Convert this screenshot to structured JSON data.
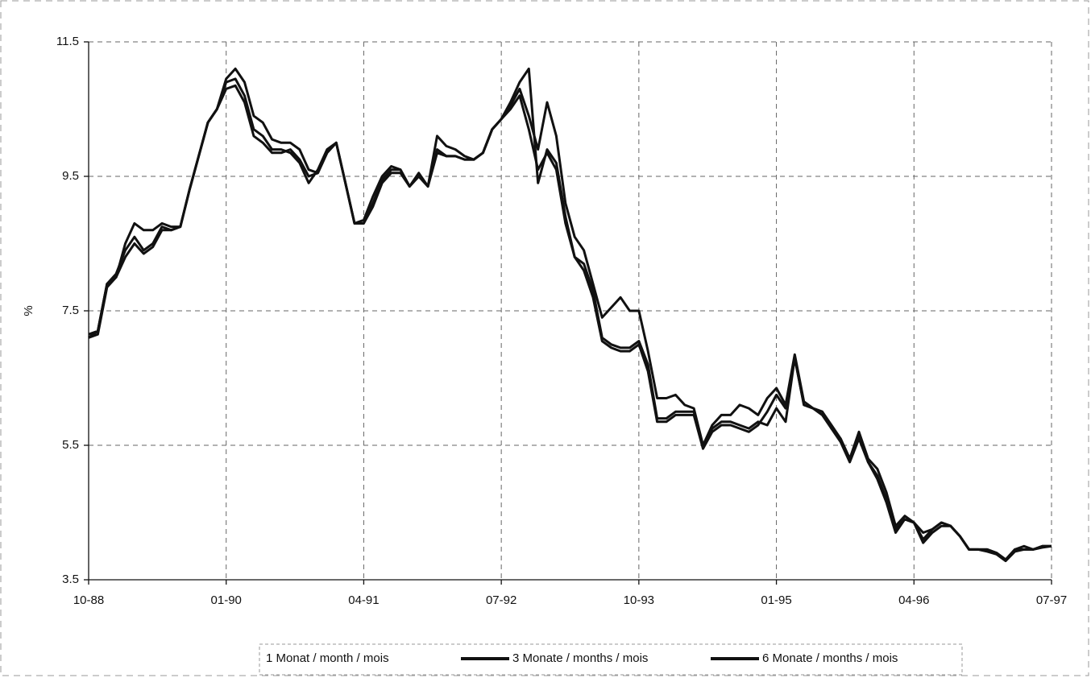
{
  "chart_data": {
    "type": "line",
    "y_label": "%",
    "categories": [
      "10-88",
      null,
      null,
      null,
      null,
      null,
      null,
      null,
      null,
      null,
      null,
      null,
      null,
      null,
      null,
      "01-90",
      null,
      null,
      null,
      null,
      null,
      null,
      null,
      null,
      null,
      null,
      null,
      null,
      null,
      null,
      "04-91",
      null,
      null,
      null,
      null,
      null,
      null,
      null,
      null,
      null,
      null,
      null,
      null,
      null,
      null,
      "07-92",
      null,
      null,
      null,
      null,
      null,
      null,
      null,
      null,
      null,
      null,
      null,
      null,
      null,
      null,
      "10-93",
      null,
      null,
      null,
      null,
      null,
      null,
      null,
      null,
      null,
      null,
      null,
      null,
      null,
      null,
      "01-95",
      null,
      null,
      null,
      null,
      null,
      null,
      null,
      null,
      null,
      null,
      null,
      null,
      null,
      null,
      "04-96",
      null,
      null,
      null,
      null,
      null,
      null,
      null,
      null,
      null,
      null,
      null,
      null,
      null,
      null,
      "07-97"
    ],
    "series": [
      {
        "name": "1 Monat / month / mois",
        "color": "#111111",
        "values": [
          7.1,
          7.2,
          7.9,
          8.0,
          8.5,
          8.8,
          8.7,
          8.7,
          8.8,
          8.75,
          8.75,
          9.3,
          9.8,
          10.3,
          10.5,
          10.9,
          10.95,
          10.7,
          10.2,
          10.1,
          9.9,
          9.9,
          9.85,
          9.7,
          9.4,
          9.6,
          9.9,
          10.0,
          9.4,
          8.8,
          8.85,
          9.2,
          9.5,
          9.65,
          9.6,
          9.35,
          9.55,
          9.35,
          10.1,
          9.95,
          9.9,
          9.8,
          9.75,
          9.85,
          10.2,
          10.35,
          10.55,
          10.8,
          10.4,
          9.9,
          10.6,
          10.1,
          9.1,
          8.6,
          8.4,
          7.9,
          7.4,
          7.55,
          7.7,
          7.5,
          7.5,
          6.9,
          6.2,
          6.2,
          6.25,
          6.1,
          6.05,
          5.5,
          5.8,
          5.95,
          5.95,
          6.1,
          6.05,
          5.95,
          6.2,
          6.35,
          6.1,
          6.85,
          6.15,
          6.05,
          6.0,
          5.8,
          5.6,
          5.3,
          5.7,
          5.3,
          5.15,
          4.8,
          4.3,
          4.45,
          4.35,
          4.2,
          4.25,
          4.35,
          4.3,
          4.15,
          3.95,
          3.95,
          3.95,
          3.9,
          3.8,
          3.95,
          4.0,
          3.95,
          4.0,
          4.0
        ]
      },
      {
        "name": "3 Monate / months / mois",
        "color": "#111111",
        "values": [
          7.15,
          7.2,
          7.9,
          8.05,
          8.4,
          8.6,
          8.4,
          8.5,
          8.75,
          8.7,
          8.75,
          9.3,
          9.8,
          10.3,
          10.5,
          10.95,
          11.1,
          10.9,
          10.4,
          10.3,
          10.05,
          10.0,
          10.0,
          9.9,
          9.6,
          9.55,
          9.85,
          10.0,
          9.4,
          8.8,
          8.8,
          9.1,
          9.45,
          9.6,
          9.6,
          9.35,
          9.5,
          9.35,
          9.85,
          9.8,
          9.8,
          9.75,
          9.75,
          9.85,
          10.2,
          10.35,
          10.6,
          10.9,
          11.1,
          9.4,
          9.9,
          9.7,
          8.9,
          8.3,
          8.2,
          7.8,
          7.1,
          7.0,
          6.95,
          6.95,
          7.05,
          6.7,
          5.9,
          5.9,
          6.0,
          6.0,
          6.0,
          5.5,
          5.75,
          5.85,
          5.85,
          5.8,
          5.75,
          5.85,
          5.8,
          6.05,
          5.85,
          6.8,
          6.1,
          6.05,
          6.0,
          5.75,
          5.6,
          5.3,
          5.65,
          5.25,
          5.05,
          4.7,
          4.25,
          4.4,
          4.35,
          4.1,
          4.25,
          4.35,
          4.3,
          4.15,
          3.95,
          3.95,
          3.95,
          3.9,
          3.8,
          3.95,
          3.95,
          3.95,
          4.0,
          4.0
        ]
      },
      {
        "name": "6 Monate / months / mois",
        "color": "#111111",
        "values": [
          7.1,
          7.15,
          7.85,
          8.0,
          8.3,
          8.5,
          8.35,
          8.45,
          8.7,
          8.7,
          8.75,
          9.3,
          9.8,
          10.3,
          10.5,
          10.8,
          10.85,
          10.6,
          10.1,
          10.0,
          9.85,
          9.85,
          9.9,
          9.75,
          9.5,
          9.55,
          9.85,
          10.0,
          9.4,
          8.8,
          8.8,
          9.05,
          9.4,
          9.55,
          9.55,
          9.35,
          9.5,
          9.35,
          9.9,
          9.8,
          9.8,
          9.75,
          9.75,
          9.85,
          10.2,
          10.35,
          10.5,
          10.7,
          10.2,
          9.6,
          9.85,
          9.6,
          8.8,
          8.3,
          8.1,
          7.7,
          7.05,
          6.95,
          6.9,
          6.9,
          7.0,
          6.6,
          5.85,
          5.85,
          5.95,
          5.95,
          5.95,
          5.45,
          5.7,
          5.8,
          5.8,
          5.75,
          5.7,
          5.8,
          6.0,
          6.25,
          6.05,
          6.8,
          6.1,
          6.05,
          5.95,
          5.75,
          5.55,
          5.25,
          5.6,
          5.25,
          5.0,
          4.65,
          4.2,
          4.4,
          4.35,
          4.05,
          4.2,
          4.3,
          4.3,
          4.15,
          3.95,
          3.95,
          3.92,
          3.88,
          3.78,
          3.92,
          3.95,
          3.95,
          3.98,
          4.0
        ]
      }
    ],
    "ylim": [
      3.5,
      11.5
    ],
    "yticks": [
      3.5,
      5.5,
      7.5,
      9.5,
      11.5
    ],
    "grid": true,
    "legend": "bottom"
  }
}
